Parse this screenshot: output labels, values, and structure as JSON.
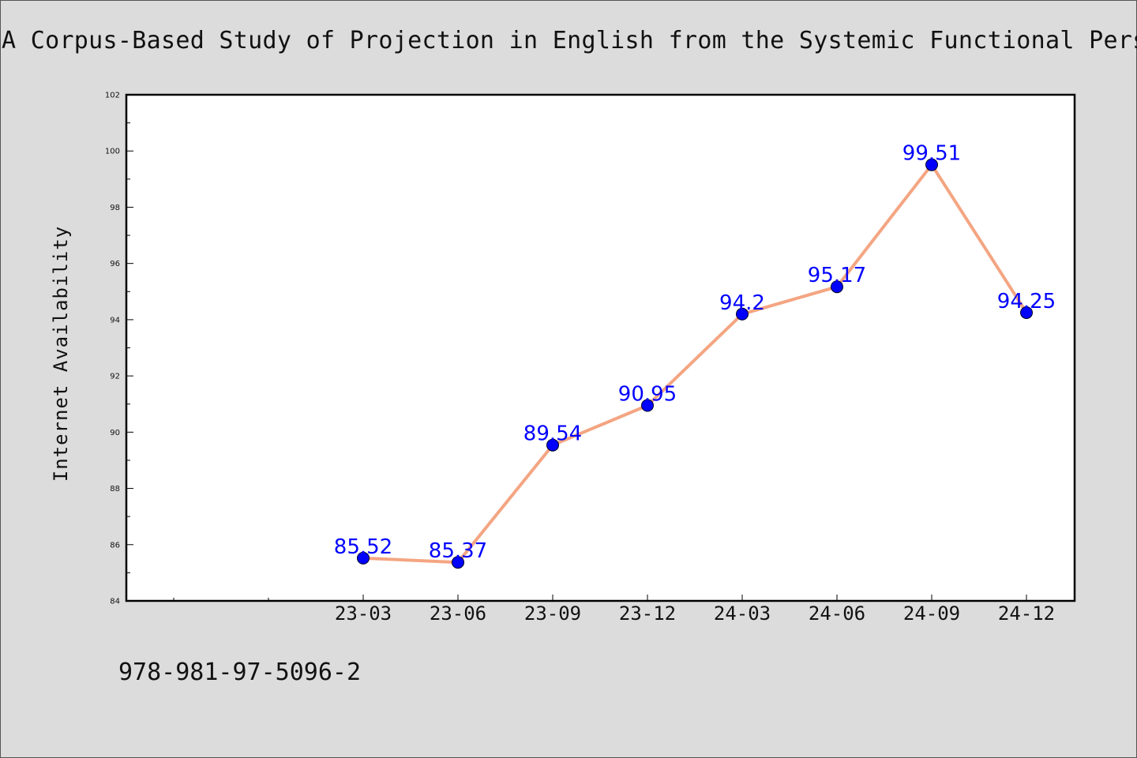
{
  "header": {
    "title": "A Corpus-Based Study of Projection in English from the Systemic Functional Persp"
  },
  "footer": {
    "isbn": "978-981-97-5096-2"
  },
  "chart_data": {
    "type": "line",
    "title": "A Corpus-Based Study of Projection in English from the Systemic Functional Persp",
    "xlabel": "",
    "ylabel": "Internet Availability",
    "categories": [
      "23-03",
      "23-06",
      "23-09",
      "23-12",
      "24-03",
      "24-06",
      "24-09",
      "24-12"
    ],
    "values": [
      85.52,
      85.37,
      89.54,
      90.95,
      94.2,
      95.17,
      99.51,
      94.25
    ],
    "data_labels": [
      "85.52",
      "85.37",
      "89.54",
      "90.95",
      "94.2",
      "95.17",
      "99.51",
      "94.25"
    ],
    "ylim": [
      84,
      102
    ],
    "yticks": [
      84,
      86,
      88,
      90,
      92,
      94,
      96,
      98,
      100,
      102
    ],
    "grid": false,
    "legend": "none",
    "colors": {
      "line": "#f4a582",
      "marker": "#0000ff",
      "data_label": "#0000ff",
      "background": "#dcdcdc",
      "plot_background": "#ffffff"
    }
  }
}
